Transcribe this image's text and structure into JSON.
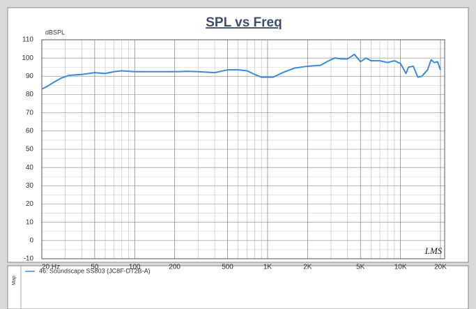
{
  "chart_data": {
    "type": "line",
    "title": "SPL vs Freq",
    "ylabel": "dBSPL",
    "watermark": "LMS",
    "legend_title": "Map",
    "log_x": true,
    "grid": true,
    "x": [
      20,
      22,
      25,
      28,
      32,
      40,
      50,
      60,
      70,
      80,
      100,
      120,
      150,
      200,
      250,
      300,
      400,
      500,
      600,
      700,
      800,
      900,
      1000,
      1100,
      1300,
      1600,
      2000,
      2500,
      2800,
      3200,
      3600,
      4000,
      4500,
      5000,
      5500,
      6000,
      7000,
      8000,
      9000,
      10000,
      11000,
      11500,
      12500,
      13500,
      14500,
      16000,
      17000,
      18000,
      19000,
      20000
    ],
    "series": [
      {
        "name": "46: Soundscape SS803 (JC8F-DT2B-A)",
        "color": "#3a8ad8",
        "values": [
          83,
          84.5,
          87,
          89,
          90.5,
          91,
          92,
          91.5,
          92.5,
          93,
          92.5,
          92.5,
          92.5,
          92.5,
          92.7,
          92.5,
          92,
          93.5,
          93.5,
          93,
          91,
          89.5,
          89.5,
          89.5,
          92,
          94.5,
          95.5,
          96,
          98,
          100,
          99.5,
          99.5,
          102,
          98,
          100,
          98.5,
          98.5,
          97.5,
          98.5,
          97,
          91.5,
          95,
          95.5,
          89.5,
          90,
          93.5,
          99,
          97.5,
          98,
          93.5
        ]
      }
    ],
    "xlim": [
      20,
      21500
    ],
    "ylim": [
      -10,
      110
    ],
    "xticks": [
      {
        "value": 20,
        "label": "20 Hz"
      },
      50,
      100,
      200,
      500,
      {
        "value": 1000,
        "label": "1K"
      },
      {
        "value": 2000,
        "label": "2K"
      },
      {
        "value": 5000,
        "label": "5K"
      },
      {
        "value": 10000,
        "label": "10K"
      },
      {
        "value": 20000,
        "label": "20K"
      }
    ],
    "xminorticks": [
      30,
      40,
      60,
      70,
      80,
      90,
      300,
      400,
      600,
      700,
      800,
      900,
      3000,
      4000,
      6000,
      7000,
      8000,
      9000
    ],
    "yticks": [
      -10,
      0,
      10,
      20,
      30,
      40,
      50,
      60,
      70,
      80,
      90,
      100,
      110
    ],
    "yminorticks": [
      -5,
      5,
      15,
      25,
      35,
      45,
      55,
      65,
      75,
      85,
      95,
      105
    ]
  }
}
